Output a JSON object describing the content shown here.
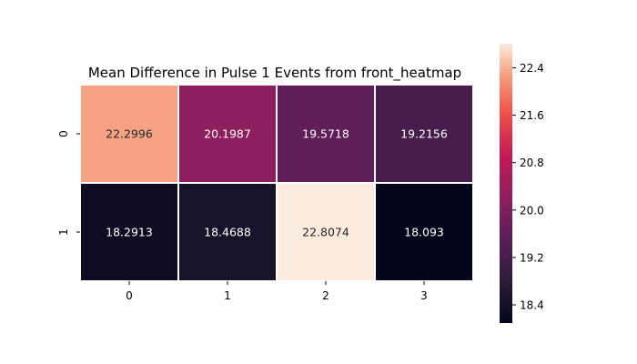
{
  "chart_data": {
    "type": "heatmap",
    "title": "Mean Difference in Pulse 1 Events from front_heatmap",
    "x_categories": [
      "0",
      "1",
      "2",
      "3"
    ],
    "y_categories": [
      "0",
      "1"
    ],
    "values": [
      [
        22.2996,
        20.1987,
        19.5718,
        19.2156
      ],
      [
        18.2913,
        18.4688,
        22.8074,
        18.093
      ]
    ],
    "value_labels": [
      [
        "22.2996",
        "20.1987",
        "19.5718",
        "19.2156"
      ],
      [
        "18.2913",
        "18.4688",
        "22.8074",
        "18.093"
      ]
    ],
    "colormap": "rocket",
    "colorbar": {
      "min": 18.093,
      "max": 22.8074,
      "ticks": [
        18.4,
        19.2,
        20.0,
        20.8,
        21.6,
        22.4
      ],
      "tick_labels": [
        "18.4",
        "19.2",
        "20.0",
        "20.8",
        "21.6",
        "22.4"
      ]
    },
    "cell_border_color": "#ffffff"
  }
}
